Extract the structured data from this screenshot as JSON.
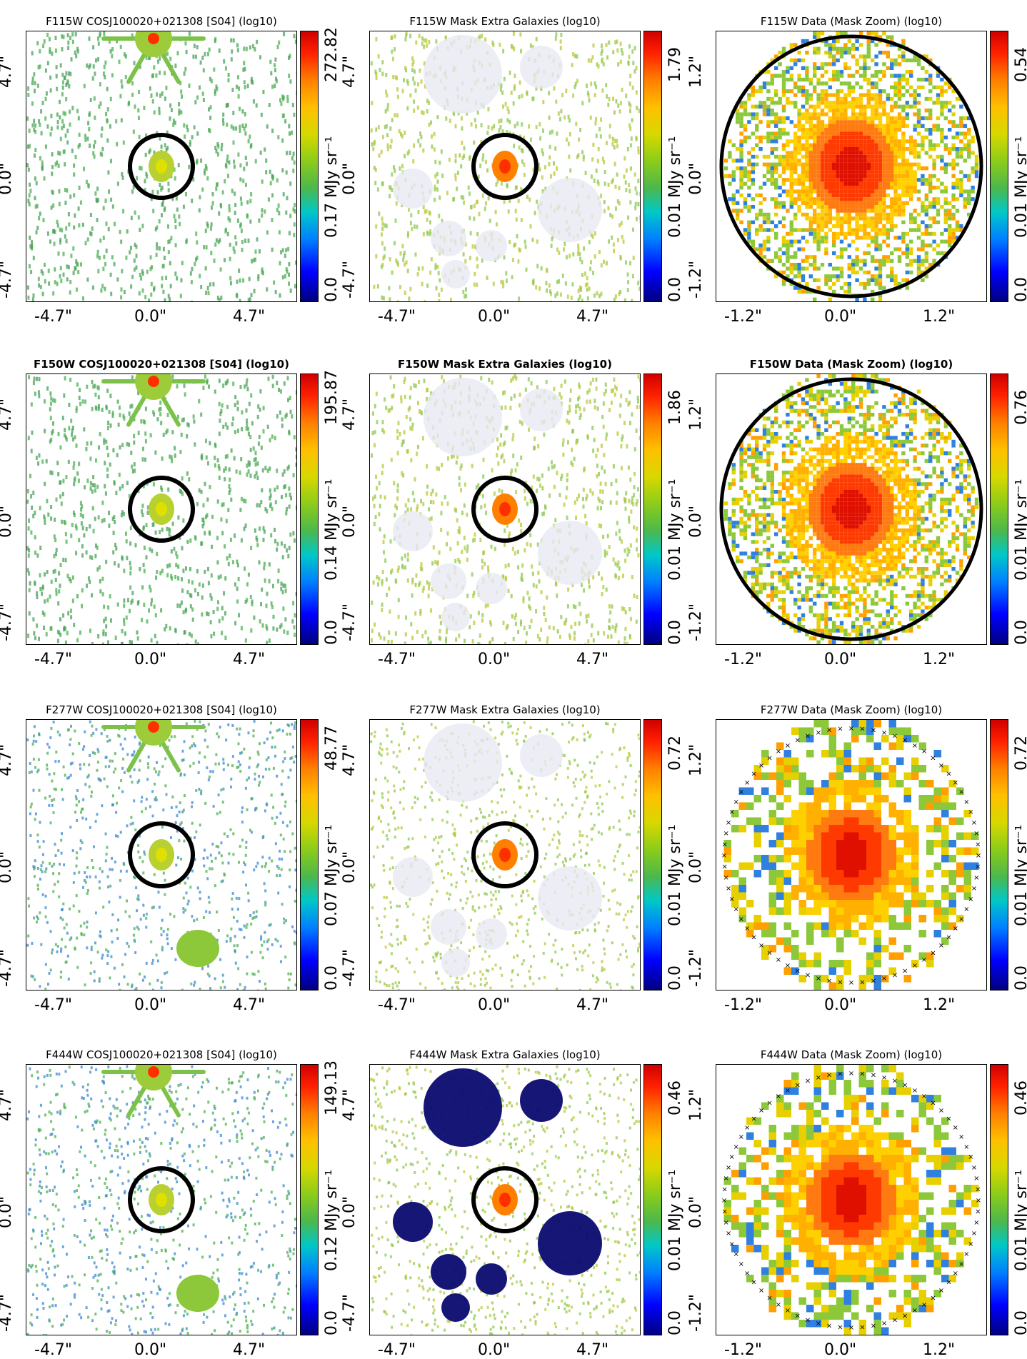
{
  "rows": [
    {
      "filter": "F115W",
      "panels": [
        {
          "title": "F115W COSJ100020+021308 [S04] (log10)",
          "bold": false,
          "cbar": {
            "max": "272.82",
            "mid": "0.17 MJy sr⁻¹",
            "min": "0.0"
          },
          "ticks": {
            "left": "-4.7\"",
            "center": "0.0\"",
            "right": "4.7\""
          }
        },
        {
          "title": "F115W Mask Extra Galaxies (log10)",
          "bold": false,
          "cbar": {
            "max": "1.79",
            "mid": "0.01 MJy sr⁻¹",
            "min": "0.0"
          },
          "ticks": {
            "left": "-4.7\"",
            "center": "0.0\"",
            "right": "4.7\""
          }
        },
        {
          "title": "F115W Data (Mask Zoom) (log10)",
          "bold": false,
          "cbar": {
            "max": "0.54",
            "mid": "0.01 MJy sr⁻¹",
            "min": "0.0"
          },
          "ticks": {
            "left": "-1.2\"",
            "center": "0.0\"",
            "right": "1.2\""
          }
        }
      ]
    },
    {
      "filter": "F150W",
      "panels": [
        {
          "title": "F150W COSJ100020+021308 [S04] (log10)",
          "bold": true,
          "cbar": {
            "max": "195.87",
            "mid": "0.14 MJy sr⁻¹",
            "min": "0.0"
          },
          "ticks": {
            "left": "-4.7\"",
            "center": "0.0\"",
            "right": "4.7\""
          }
        },
        {
          "title": "F150W Mask Extra Galaxies (log10)",
          "bold": true,
          "cbar": {
            "max": "1.86",
            "mid": "0.01 MJy sr⁻¹",
            "min": "0.0"
          },
          "ticks": {
            "left": "-4.7\"",
            "center": "0.0\"",
            "right": "4.7\""
          }
        },
        {
          "title": "F150W Data (Mask Zoom) (log10)",
          "bold": true,
          "cbar": {
            "max": "0.76",
            "mid": "0.01 MJy sr⁻¹",
            "min": "0.0"
          },
          "ticks": {
            "left": "-1.2\"",
            "center": "0.0\"",
            "right": "1.2\""
          }
        }
      ]
    },
    {
      "filter": "F277W",
      "panels": [
        {
          "title": "F277W COSJ100020+021308 [S04] (log10)",
          "bold": false,
          "cbar": {
            "max": "48.77",
            "mid": "0.07 MJy sr⁻¹",
            "min": "0.0"
          },
          "ticks": {
            "left": "-4.7\"",
            "center": "0.0\"",
            "right": "4.7\""
          }
        },
        {
          "title": "F277W Mask Extra Galaxies (log10)",
          "bold": false,
          "cbar": {
            "max": "0.72",
            "mid": "0.01 MJy sr⁻¹",
            "min": "0.0"
          },
          "ticks": {
            "left": "-4.7\"",
            "center": "0.0\"",
            "right": "4.7\""
          }
        },
        {
          "title": "F277W Data (Mask Zoom) (log10)",
          "bold": false,
          "cbar": {
            "max": "0.72",
            "mid": "0.01 MJy sr⁻¹",
            "min": "0.0"
          },
          "ticks": {
            "left": "-1.2\"",
            "center": "0.0\"",
            "right": "1.2\""
          }
        }
      ]
    },
    {
      "filter": "F444W",
      "panels": [
        {
          "title": "F444W COSJ100020+021308 [S04] (log10)",
          "bold": false,
          "cbar": {
            "max": "149.13",
            "mid": "0.12 MJy sr⁻¹",
            "min": "0.0"
          },
          "ticks": {
            "left": "-4.7\"",
            "center": "0.0\"",
            "right": "4.7\""
          }
        },
        {
          "title": "F444W Mask Extra Galaxies (log10)",
          "bold": false,
          "cbar": {
            "max": "0.46",
            "mid": "0.01 MJy sr⁻¹",
            "min": "0.0"
          },
          "ticks": {
            "left": "-4.7\"",
            "center": "0.0\"",
            "right": "4.7\""
          }
        },
        {
          "title": "F444W Data (Mask Zoom) (log10)",
          "bold": false,
          "cbar": {
            "max": "0.46",
            "mid": "0.01 MJy sr⁻¹",
            "min": "0.0"
          },
          "ticks": {
            "left": "-1.2\"",
            "center": "0.0\"",
            "right": "1.2\""
          }
        }
      ]
    }
  ]
}
